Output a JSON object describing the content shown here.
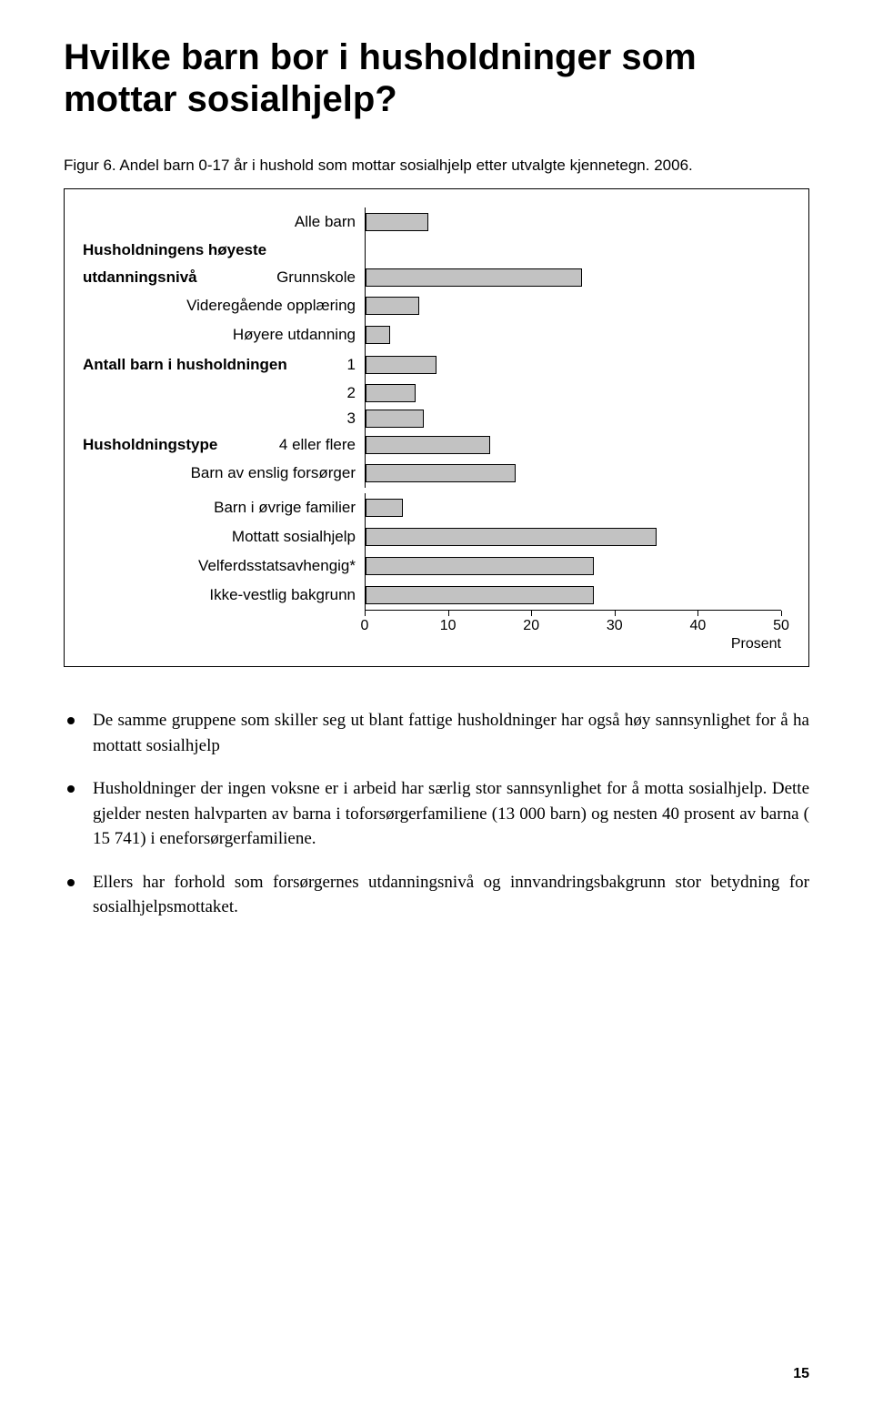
{
  "title": "Hvilke barn bor i husholdninger som mottar sosialhjelp?",
  "caption": "Figur 6. Andel barn 0-17 år i hushold som mottar sosialhjelp etter utvalgte kjennetegn. 2006.",
  "chart": {
    "type": "bar-horizontal",
    "bar_color": "#c2c2c2",
    "bar_border": "#000000",
    "xmax": 50,
    "xtick_step": 10,
    "xticks": [
      "0",
      "10",
      "20",
      "30",
      "40",
      "50"
    ],
    "xaxis_title": "Prosent",
    "sections": [
      {
        "header1": "Husholdningens høyeste",
        "header2": "utdanningsnivå"
      },
      {
        "header": "Antall barn i husholdningen"
      },
      {
        "header": "Husholdningstype"
      }
    ],
    "bars": [
      {
        "label": "Alle barn",
        "value": 7.5
      },
      {
        "label": "Grunnskole",
        "value": 26
      },
      {
        "label": "Videregående opplæring",
        "value": 6.5
      },
      {
        "label": "Høyere utdanning",
        "value": 3
      },
      {
        "label": "1",
        "value": 8.5
      },
      {
        "label": "2",
        "value": 6
      },
      {
        "label": "3",
        "value": 7
      },
      {
        "label": "4 eller flere",
        "value": 15
      },
      {
        "label": "Barn av enslig forsørger",
        "value": 18
      },
      {
        "label": "Barn i øvrige familier",
        "value": 4.5
      },
      {
        "label": "Mottatt sosialhjelp",
        "value": 35
      },
      {
        "label": "Velferdsstatsavhengig*",
        "value": 27.5
      },
      {
        "label": "Ikke-vestlig bakgrunn",
        "value": 27.5
      }
    ]
  },
  "bullets": [
    "De samme gruppene som skiller seg ut blant fattige husholdninger har også høy sannsynlighet for å ha mottatt sosialhjelp",
    "Husholdninger der ingen voksne er i arbeid har særlig stor sannsynlighet for å motta sosialhjelp. Dette gjelder nesten halvparten av barna i toforsørgerfamiliene (13 000 barn) og nesten 40 prosent av barna ( 15 741) i eneforsørgerfamiliene.",
    "Ellers har forhold som forsørgernes utdanningsnivå og innvandringsbakgrunn stor betydning for sosialhjelpsmottaket."
  ],
  "page_number": "15"
}
